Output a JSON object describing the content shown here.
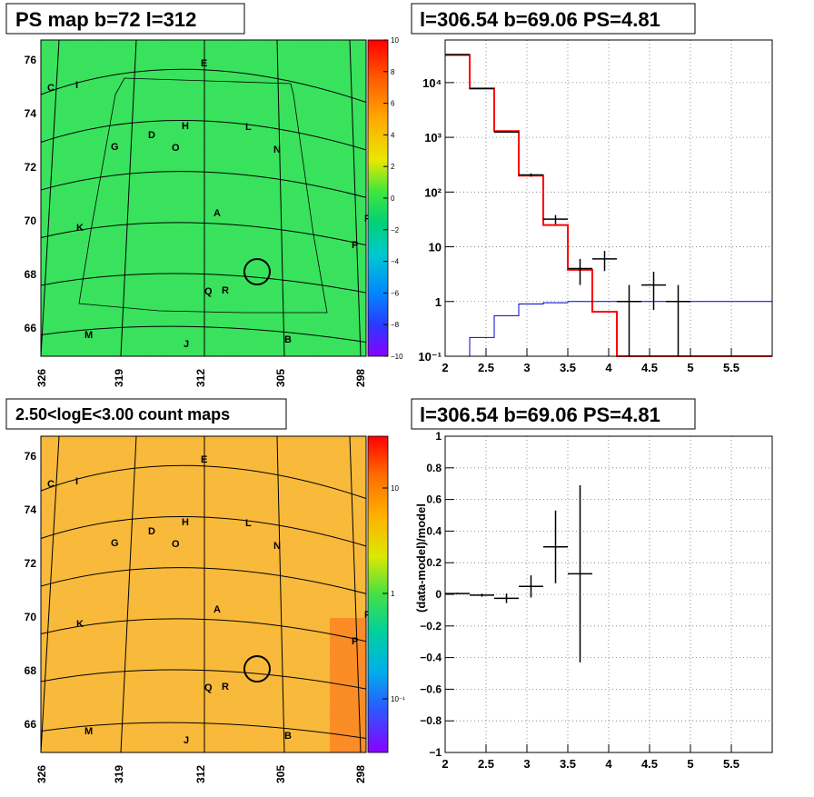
{
  "colors": {
    "map_bg_top": "#2ee05a",
    "map_bg_count": "#f6c33a",
    "hist_data": "#000000",
    "hist_model": "#ff0000",
    "hist_bg": "#0000cc"
  },
  "top_left": {
    "title": "PS map b=72 l=312",
    "y_ticks": [
      "76",
      "74",
      "72",
      "70",
      "68",
      "66"
    ],
    "x_ticks": [
      "326",
      "319",
      "312",
      "305",
      "298"
    ],
    "colorbar_ticks": [
      "10",
      "8",
      "6",
      "4",
      "2",
      "0",
      "−2",
      "−4",
      "−6",
      "−8",
      "−10"
    ],
    "labels": [
      "E",
      "C",
      "I",
      "H",
      "L",
      "D",
      "G",
      "O",
      "N",
      "A",
      "F",
      "K",
      "P",
      "Q",
      "R",
      "M",
      "J",
      "B"
    ]
  },
  "bottom_left": {
    "title": "2.50<logE<3.00 count maps",
    "y_ticks": [
      "76",
      "74",
      "72",
      "70",
      "68",
      "66"
    ],
    "x_ticks": [
      "326",
      "319",
      "312",
      "305",
      "298"
    ],
    "colorbar_ticks": [
      "10",
      "1",
      "10⁻¹"
    ],
    "labels": [
      "E",
      "C",
      "I",
      "H",
      "L",
      "D",
      "G",
      "O",
      "N",
      "A",
      "F",
      "K",
      "P",
      "Q",
      "R",
      "M",
      "J",
      "B"
    ]
  },
  "chart_data": [
    {
      "type": "step-histogram",
      "title": "l=306.54 b=69.06 PS=4.81",
      "xlim": [
        2,
        6
      ],
      "ylim": [
        0.1,
        60000
      ],
      "yscale": "log",
      "x_ticks": [
        "2",
        "2.5",
        "3",
        "3.5",
        "4",
        "4.5",
        "5",
        "5.5"
      ],
      "y_ticks": [
        "10⁻¹",
        "1",
        "10",
        "10²",
        "10³",
        "10⁴"
      ],
      "grid": true,
      "bin_edges": [
        2.0,
        2.3,
        2.6,
        2.9,
        3.2,
        3.5,
        3.8,
        4.1,
        4.4,
        4.7,
        5.0,
        6.0
      ],
      "series": [
        {
          "values": [
            32000,
            7800,
            1300,
            200,
            25,
            3.8,
            0.65,
            0.1,
            0.1,
            0.1,
            0.1
          ]
        },
        {
          "values": [
            0.06,
            0.22,
            0.55,
            0.9,
            0.95,
            1.0,
            1.0,
            1.0,
            1.0,
            1.0,
            1.0
          ]
        }
      ],
      "points": [
        {
          "x": 2.15,
          "y": 32500,
          "xerr": 0.15,
          "ylo": 32300,
          "yhi": 32700
        },
        {
          "x": 2.45,
          "y": 7800,
          "xerr": 0.15,
          "ylo": 7700,
          "yhi": 7900
        },
        {
          "x": 2.75,
          "y": 1250,
          "xerr": 0.15,
          "ylo": 1210,
          "yhi": 1290
        },
        {
          "x": 3.05,
          "y": 205,
          "xerr": 0.15,
          "ylo": 191,
          "yhi": 219
        },
        {
          "x": 3.35,
          "y": 32,
          "xerr": 0.15,
          "ylo": 26,
          "yhi": 38
        },
        {
          "x": 3.65,
          "y": 4,
          "xerr": 0.15,
          "ylo": 2,
          "yhi": 6
        },
        {
          "x": 3.95,
          "y": 6,
          "xerr": 0.15,
          "ylo": 3.6,
          "yhi": 8.4
        },
        {
          "x": 4.25,
          "y": 1,
          "xerr": 0.15,
          "ylo": 0.1,
          "yhi": 2
        },
        {
          "x": 4.55,
          "y": 2,
          "xerr": 0.15,
          "ylo": 0.7,
          "yhi": 3.5
        },
        {
          "x": 4.85,
          "y": 1,
          "xerr": 0.15,
          "ylo": 0.1,
          "yhi": 2
        }
      ]
    },
    {
      "type": "scatter",
      "title": "l=306.54 b=69.06 PS=4.81",
      "xlim": [
        2,
        6
      ],
      "ylim": [
        -1,
        1
      ],
      "ylabel": "(data-model)/model",
      "x_ticks": [
        "2",
        "2.5",
        "3",
        "3.5",
        "4",
        "4.5",
        "5",
        "5.5"
      ],
      "y_ticks": [
        "−1",
        "−0.8",
        "−0.6",
        "−0.4",
        "−0.2",
        "0",
        "0.2",
        "0.4",
        "0.6",
        "0.8",
        "1"
      ],
      "grid": true,
      "points": [
        {
          "x": 2.15,
          "y": 0.005,
          "xerr": 0.15,
          "ylo": 0.0,
          "yhi": 0.01
        },
        {
          "x": 2.45,
          "y": -0.005,
          "xerr": 0.15,
          "ylo": -0.015,
          "yhi": 0.005
        },
        {
          "x": 2.75,
          "y": -0.025,
          "xerr": 0.15,
          "ylo": -0.055,
          "yhi": 0.005
        },
        {
          "x": 3.05,
          "y": 0.05,
          "xerr": 0.15,
          "ylo": -0.02,
          "yhi": 0.12
        },
        {
          "x": 3.35,
          "y": 0.3,
          "xerr": 0.15,
          "ylo": 0.07,
          "yhi": 0.53
        },
        {
          "x": 3.65,
          "y": 0.13,
          "xerr": 0.15,
          "ylo": -0.43,
          "yhi": 0.69
        }
      ]
    }
  ]
}
